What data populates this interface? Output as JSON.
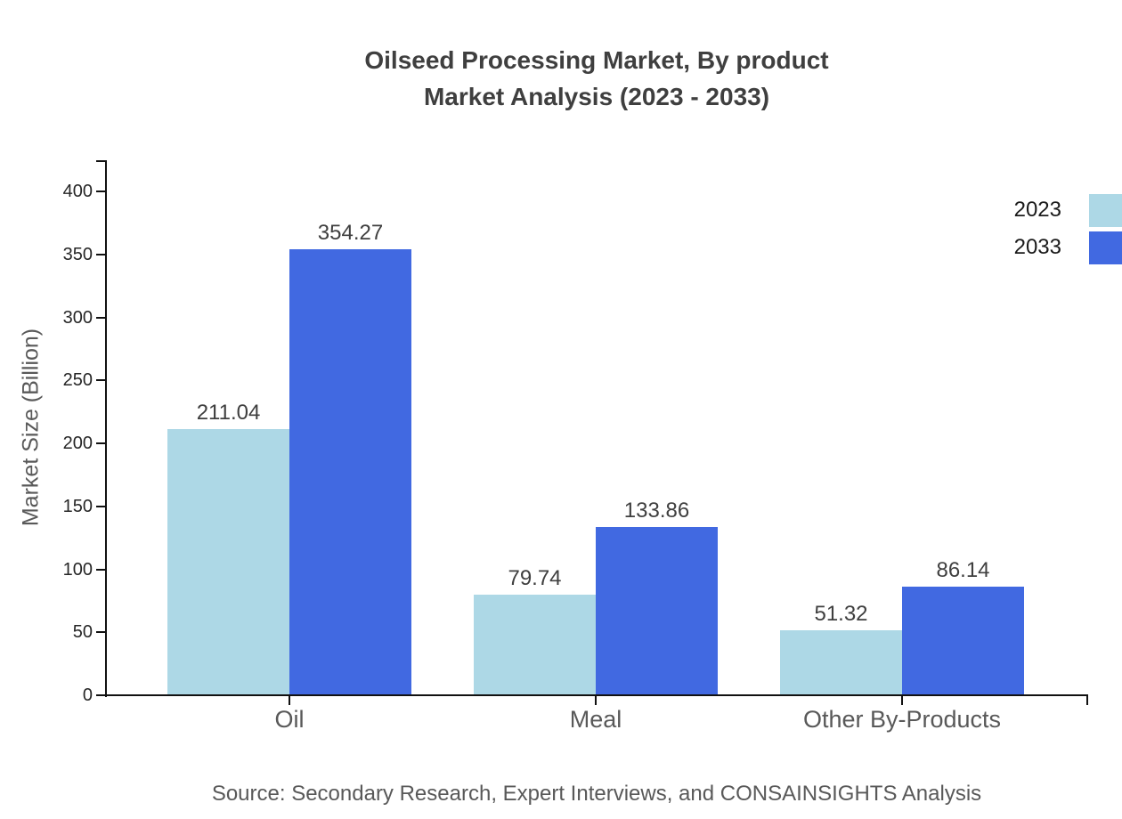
{
  "title": {
    "line1": "Oilseed Processing Market, By product",
    "line2": "Market Analysis (2023 - 2033)"
  },
  "chart_data": {
    "type": "bar",
    "title": "Oilseed Processing Market, By product Market Analysis (2023 - 2033)",
    "categories": [
      "Oil",
      "Meal",
      "Other By-Products"
    ],
    "series": [
      {
        "name": "2023",
        "color": "#ADD8E6",
        "values": [
          211.04,
          79.74,
          51.32
        ]
      },
      {
        "name": "2033",
        "color": "#4169E1",
        "values": [
          354.27,
          133.86,
          86.14
        ]
      }
    ],
    "xlabel": "",
    "ylabel": "Market Size (Billion)",
    "ylim": [
      0,
      400
    ],
    "yticks": [
      0,
      50,
      100,
      150,
      200,
      250,
      300,
      350,
      400
    ],
    "grid": false,
    "legend_position": "top-right",
    "value_labels": true,
    "value_label_format": "2-decimals"
  },
  "source": {
    "text": "Source: Secondary Research, Expert Interviews, and CONSAINSIGHTS Analysis"
  },
  "colors": {
    "background": "#ffffff",
    "axis": "#111111",
    "title_text": "#3f3f3f",
    "tick_label": "#262626",
    "category_label": "#595959",
    "axis_title": "#595959",
    "value_label": "#3f3f3f",
    "legend_label": "#1a1a1a",
    "source_text": "#595959",
    "series_2023": "#ADD8E6",
    "series_2033": "#4169E1"
  }
}
